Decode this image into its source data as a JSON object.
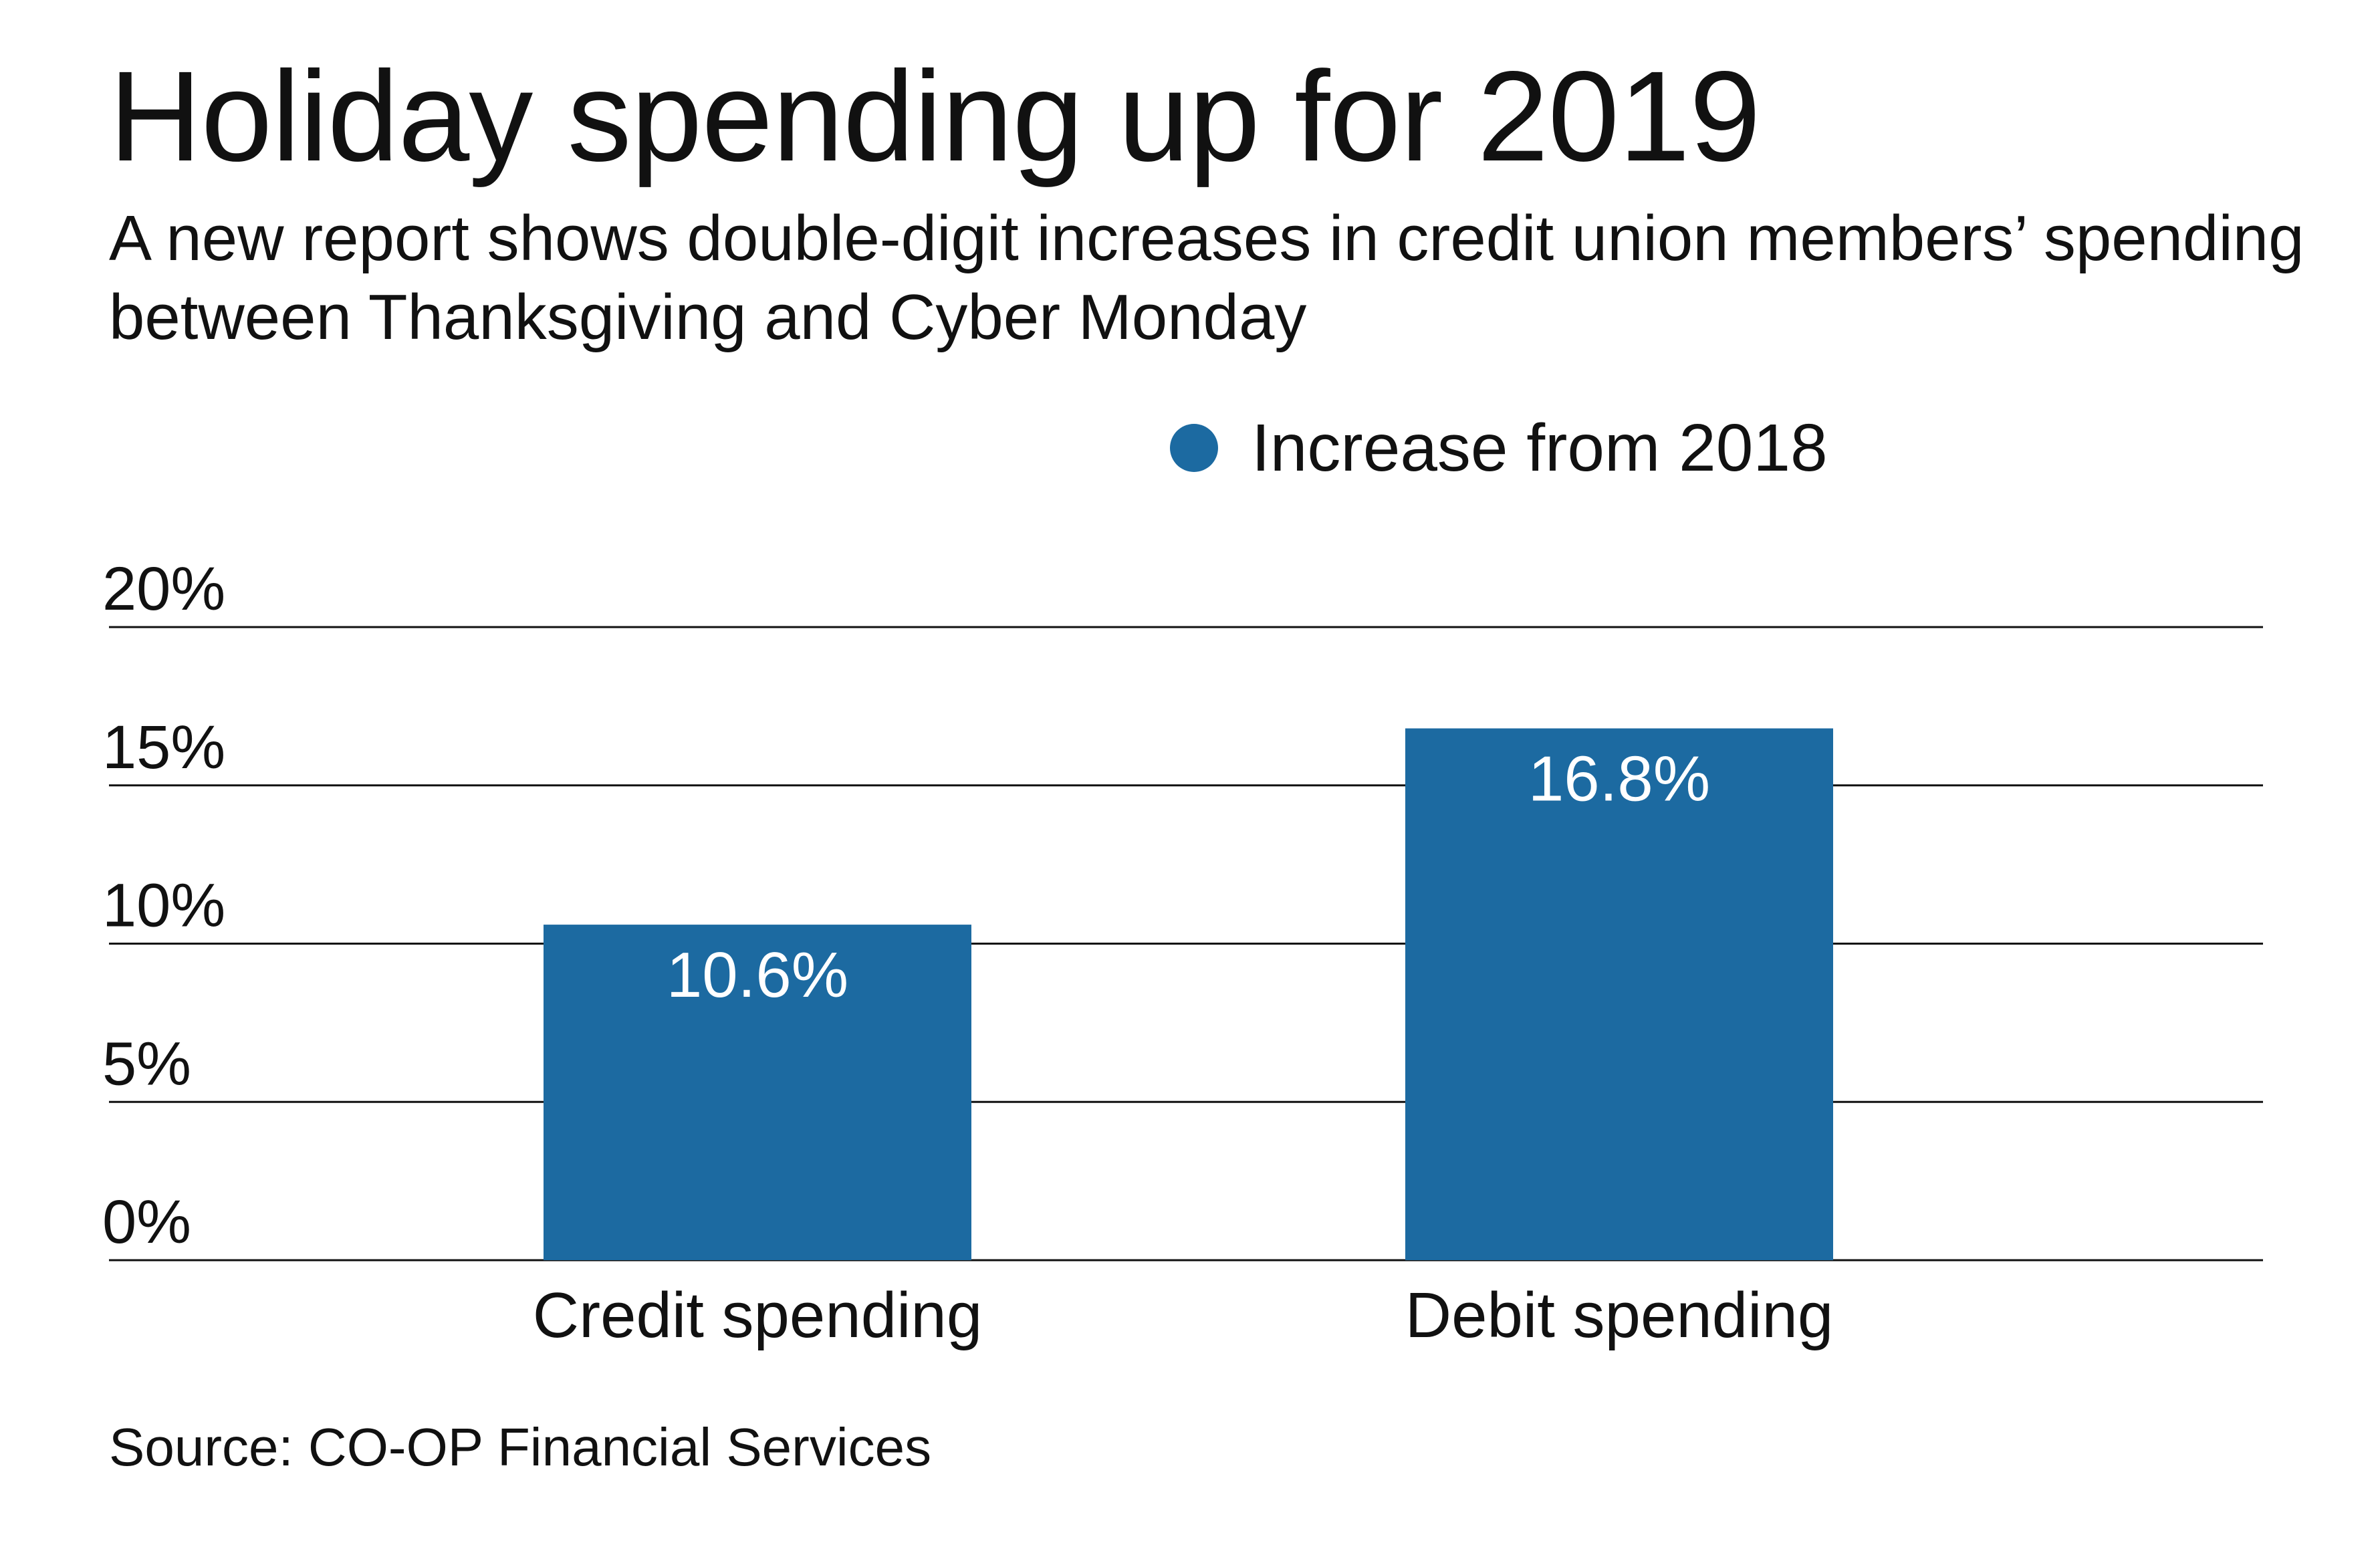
{
  "chart_data": {
    "type": "bar",
    "title": "Holiday spending up for 2019",
    "subtitle": "A new report shows double-digit increases in credit union members’ spending between Thanksgiving and Cyber Monday",
    "categories": [
      "Credit spending",
      "Debit spending"
    ],
    "series": [
      {
        "name": "Increase from 2018",
        "values": [
          10.6,
          16.8
        ],
        "value_labels": [
          "10.6%",
          "16.8%"
        ]
      }
    ],
    "xlabel": "",
    "ylabel": "",
    "ylim": [
      0,
      20
    ],
    "y_ticks": [
      0,
      5,
      10,
      15,
      20
    ],
    "y_tick_labels": [
      "0%",
      "5%",
      "10%",
      "15%",
      "20%"
    ],
    "grid": true,
    "legend_position": "top-right",
    "source": "Source: CO-OP Financial Services",
    "colors": {
      "bar": "#1c6aa1",
      "gridline": "#111111",
      "text": "#111111",
      "bar_label": "#ffffff"
    }
  }
}
